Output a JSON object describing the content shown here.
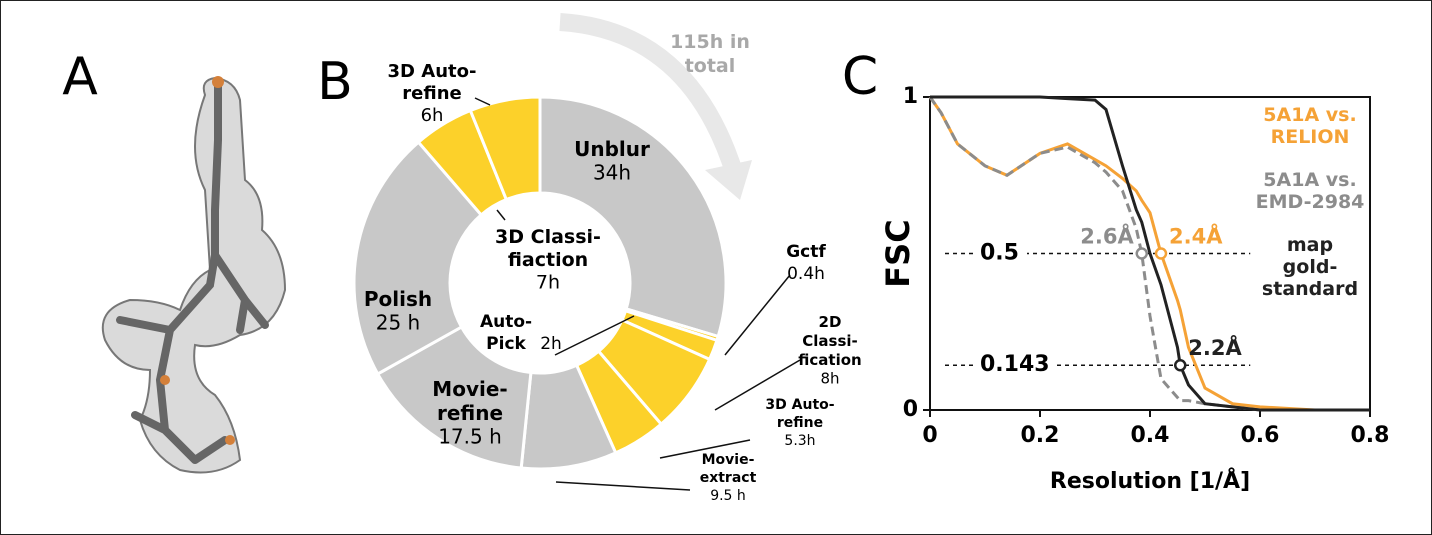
{
  "panels": [
    "A",
    "B",
    "C"
  ],
  "chart_data": [
    {
      "type": "pie",
      "categories": [
        "Unblur",
        "Gctf",
        "Auto-\nPick",
        "2D\nClassi-\nfication",
        "3D Auto-\nrefine",
        "Movie-\nextract",
        "Movie-\nrefine",
        "Polish",
        "3D Auto-\nrefine",
        "3D Classi-\nfiaction"
      ],
      "values": [
        34,
        0.4,
        2,
        8,
        5.3,
        9.5,
        17.5,
        25,
        6,
        7
      ],
      "value_labels": [
        "34h",
        "0.4h",
        "2h",
        "8h",
        "5.3h",
        "9.5 h",
        "17.5 h",
        "25 h",
        "6h",
        "7h"
      ],
      "colors": [
        "#c8c8c8",
        "#fcd12a",
        "#fcd12a",
        "#fcd12a",
        "#fcd12a",
        "#c8c8c8",
        "#c8c8c8",
        "#c8c8c8",
        "#fcd12a",
        "#fcd12a"
      ],
      "annotation": "115h in\ntotal"
    },
    {
      "type": "line",
      "xlabel": "Resolution [1/Å]",
      "ylabel": "FSC",
      "xlim": [
        0,
        0.8
      ],
      "ylim": [
        0,
        1
      ],
      "xticks": [
        0,
        0.2,
        0.4,
        0.6,
        0.8
      ],
      "yticks": [
        0,
        1
      ],
      "x": [
        0,
        0.02,
        0.05,
        0.1,
        0.14,
        0.2,
        0.25,
        0.3,
        0.32,
        0.35,
        0.375,
        0.385,
        0.4,
        0.42,
        0.45,
        0.455,
        0.47,
        0.5,
        0.55,
        0.6,
        0.7,
        0.8
      ],
      "series": [
        {
          "name": "5A1A vs.\nRELION",
          "color": "#f5a236",
          "dash": false,
          "values": [
            1,
            0.95,
            0.85,
            0.78,
            0.75,
            0.82,
            0.85,
            0.8,
            0.78,
            0.74,
            0.7,
            0.67,
            0.63,
            0.5,
            0.35,
            0.32,
            0.2,
            0.07,
            0.02,
            0.01,
            0,
            0
          ]
        },
        {
          "name": "5A1A vs.\nEMD-2984",
          "color": "#8c8c8c",
          "dash": true,
          "values": [
            1,
            0.95,
            0.85,
            0.78,
            0.75,
            0.82,
            0.84,
            0.79,
            0.76,
            0.7,
            0.58,
            0.5,
            0.3,
            0.1,
            0.04,
            0.03,
            0.03,
            0.02,
            0.01,
            0,
            0,
            0
          ]
        },
        {
          "name": "map\ngold-\nstandard",
          "color": "#222222",
          "dash": false,
          "values": [
            1,
            1,
            1,
            1,
            1,
            1,
            0.995,
            0.99,
            0.96,
            0.78,
            0.64,
            0.6,
            0.5,
            0.4,
            0.2,
            0.143,
            0.08,
            0.02,
            0.01,
            0,
            0,
            0
          ]
        }
      ],
      "hlines": [
        {
          "value": 0.5,
          "label": "0.5"
        },
        {
          "value": 0.143,
          "label": "0.143"
        }
      ],
      "markers": [
        {
          "x": 0.385,
          "y": 0.5,
          "label": "2.6Å",
          "color": "#8c8c8c"
        },
        {
          "x": 0.42,
          "y": 0.5,
          "label": "2.4Å",
          "color": "#f5a236"
        },
        {
          "x": 0.455,
          "y": 0.143,
          "label": "2.2Å",
          "color": "#222222"
        }
      ]
    }
  ]
}
